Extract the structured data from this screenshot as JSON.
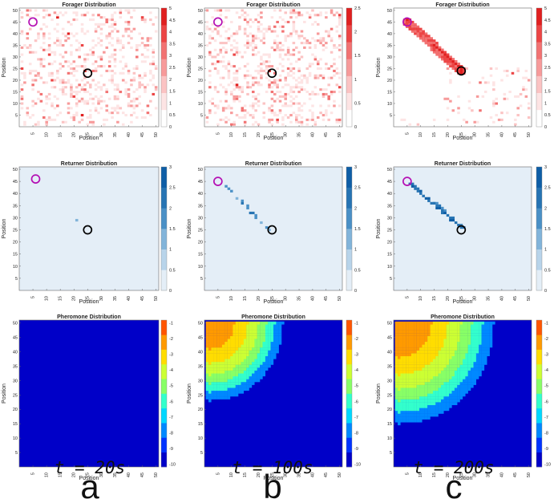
{
  "figure": {
    "column_times": [
      "t = 20s",
      "t = 100s",
      "t = 200s"
    ],
    "column_letters": [
      "a",
      "b",
      "c"
    ]
  },
  "chart_data": [
    {
      "id": "forager-a",
      "type": "heatmap",
      "title": "Forager Distribution",
      "xlabel": "Position",
      "ylabel": "Position",
      "xlim": [
        0,
        51
      ],
      "ylim": [
        0,
        51
      ],
      "xticks": [
        5,
        10,
        15,
        20,
        25,
        30,
        35,
        40,
        45,
        50
      ],
      "yticks": [
        5,
        10,
        15,
        20,
        25,
        30,
        35,
        40,
        45,
        50
      ],
      "colormap": "white-red",
      "clim": [
        0,
        5
      ],
      "colorbar_ticks": [
        0,
        0.5,
        1,
        1.5,
        2,
        2.5,
        3,
        3.5,
        4,
        4.5,
        5
      ],
      "pattern": "scattered foragers over the whole field, densest near the nest",
      "markers": [
        {
          "name": "source",
          "x": 5,
          "y": 45,
          "color": "#b40fb4"
        },
        {
          "name": "nest",
          "x": 25,
          "y": 23,
          "color": "#000000"
        }
      ]
    },
    {
      "id": "forager-b",
      "type": "heatmap",
      "title": "Forager Distribution",
      "xlabel": "Position",
      "ylabel": "Position",
      "xlim": [
        0,
        51
      ],
      "ylim": [
        0,
        51
      ],
      "xticks": [
        5,
        10,
        15,
        20,
        25,
        30,
        35,
        40,
        45,
        50
      ],
      "yticks": [
        5,
        10,
        15,
        20,
        25,
        30,
        35,
        40,
        45,
        50
      ],
      "colormap": "white-red",
      "clim": [
        0,
        2.5
      ],
      "colorbar_ticks": [
        0,
        0.5,
        1,
        1.5,
        2,
        2.5
      ],
      "pattern": "scattered foragers, beginning to align toward the source",
      "markers": [
        {
          "name": "source",
          "x": 5,
          "y": 45,
          "color": "#b40fb4"
        },
        {
          "name": "nest",
          "x": 25,
          "y": 23,
          "color": "#000000"
        }
      ]
    },
    {
      "id": "forager-c",
      "type": "heatmap",
      "title": "Forager Distribution",
      "xlabel": "Position",
      "ylabel": "Position",
      "xlim": [
        0,
        51
      ],
      "ylim": [
        0,
        51
      ],
      "xticks": [
        5,
        10,
        15,
        20,
        25,
        30,
        35,
        40,
        45,
        50
      ],
      "yticks": [
        5,
        10,
        15,
        20,
        25,
        30,
        35,
        40,
        45,
        50
      ],
      "colormap": "white-red",
      "clim": [
        0,
        5
      ],
      "colorbar_ticks": [
        0,
        0.5,
        1,
        1.5,
        2,
        2.5,
        3,
        3.5,
        4,
        4.5,
        5
      ],
      "pattern": "dense diagonal trail from source to nest plus sparse foragers lower right",
      "trail": {
        "from": [
          5,
          45
        ],
        "to": [
          25,
          24
        ]
      },
      "markers": [
        {
          "name": "source",
          "x": 5,
          "y": 45,
          "color": "#b40fb4"
        },
        {
          "name": "nest",
          "x": 25,
          "y": 24,
          "color": "#000000"
        }
      ]
    },
    {
      "id": "returner-a",
      "type": "heatmap",
      "title": "Returner Distribution",
      "xlabel": "Position",
      "ylabel": "Position",
      "xlim": [
        0,
        51
      ],
      "ylim": [
        0,
        51
      ],
      "xticks": [
        5,
        10,
        15,
        20,
        25,
        30,
        35,
        40,
        45,
        50
      ],
      "yticks": [
        5,
        10,
        15,
        20,
        25,
        30,
        35,
        40,
        45,
        50
      ],
      "colormap": "blues",
      "clim": [
        0,
        3
      ],
      "colorbar_ticks": [
        0,
        0.5,
        1,
        1.5,
        2,
        2.5,
        3
      ],
      "cells": [
        {
          "x": 21,
          "y": 29,
          "value": 1
        }
      ],
      "markers": [
        {
          "name": "source",
          "x": 6,
          "y": 46,
          "color": "#b40fb4"
        },
        {
          "name": "nest",
          "x": 25,
          "y": 25,
          "color": "#000000"
        }
      ]
    },
    {
      "id": "returner-b",
      "type": "heatmap",
      "title": "Returner Distribution",
      "xlabel": "Position",
      "ylabel": "Position",
      "xlim": [
        0,
        51
      ],
      "ylim": [
        0,
        51
      ],
      "xticks": [
        5,
        10,
        15,
        20,
        25,
        30,
        35,
        40,
        45,
        50
      ],
      "yticks": [
        5,
        10,
        15,
        20,
        25,
        30,
        35,
        40,
        45,
        50
      ],
      "colormap": "blues",
      "clim": [
        0,
        3
      ],
      "colorbar_ticks": [
        0,
        0.5,
        1,
        1.5,
        2,
        2.5,
        3
      ],
      "trail": {
        "from": [
          7,
          44
        ],
        "to": [
          24,
          25
        ],
        "fill": "sparse"
      },
      "markers": [
        {
          "name": "source",
          "x": 5,
          "y": 45,
          "color": "#b40fb4"
        },
        {
          "name": "nest",
          "x": 25,
          "y": 25,
          "color": "#000000"
        }
      ]
    },
    {
      "id": "returner-c",
      "type": "heatmap",
      "title": "Returner Distribution",
      "xlabel": "Position",
      "ylabel": "Position",
      "xlim": [
        0,
        51
      ],
      "ylim": [
        0,
        51
      ],
      "xticks": [
        5,
        10,
        15,
        20,
        25,
        30,
        35,
        40,
        45,
        50
      ],
      "yticks": [
        5,
        10,
        15,
        20,
        25,
        30,
        35,
        40,
        45,
        50
      ],
      "colormap": "blues",
      "clim": [
        0,
        3
      ],
      "colorbar_ticks": [
        0,
        0.5,
        1,
        1.5,
        2,
        2.5,
        3
      ],
      "trail": {
        "from": [
          6,
          44
        ],
        "to": [
          25,
          26
        ],
        "fill": "dense"
      },
      "markers": [
        {
          "name": "source",
          "x": 5,
          "y": 45,
          "color": "#b40fb4"
        },
        {
          "name": "nest",
          "x": 25,
          "y": 25,
          "color": "#000000"
        }
      ]
    },
    {
      "id": "pheromone-a",
      "type": "heatmap",
      "title": "Pheromone Distribution",
      "xlabel": "Position",
      "ylabel": "Position",
      "xlim": [
        0,
        51
      ],
      "ylim": [
        0,
        51
      ],
      "xticks": [
        5,
        10,
        15,
        20,
        25,
        30,
        35,
        40,
        45,
        50
      ],
      "yticks": [
        5,
        10,
        15,
        20,
        25,
        30,
        35,
        40,
        45,
        50
      ],
      "colormap": "jet-10",
      "clim": [
        -10,
        -1
      ],
      "colorbar_ticks": [
        -1,
        -2,
        -3,
        -4,
        -5,
        -6,
        -7,
        -8,
        -9,
        -10
      ],
      "level_boundaries": [],
      "base_level": -10
    },
    {
      "id": "pheromone-b",
      "type": "heatmap",
      "title": "Pheromone Distribution",
      "xlabel": "Position",
      "ylabel": "Position",
      "xlim": [
        0,
        51
      ],
      "ylim": [
        0,
        51
      ],
      "xticks": [
        5,
        10,
        15,
        20,
        25,
        30,
        35,
        40,
        45,
        50
      ],
      "yticks": [
        5,
        10,
        15,
        20,
        25,
        30,
        35,
        40,
        45,
        50
      ],
      "colormap": "jet-10",
      "clim": [
        -10,
        -1
      ],
      "colorbar_ticks": [
        -1,
        -2,
        -3,
        -4,
        -5,
        -6,
        -7,
        -8,
        -9,
        -10
      ],
      "source": [
        2,
        50
      ],
      "level_boundaries": [
        {
          "level": -2,
          "radius": 9
        },
        {
          "level": -3,
          "radius": 14
        },
        {
          "level": -4,
          "radius": 18
        },
        {
          "level": -5,
          "radius": 21
        },
        {
          "level": -6,
          "radius": 24
        },
        {
          "level": -8,
          "radius": 27
        }
      ],
      "base_level": -10
    },
    {
      "id": "pheromone-c",
      "type": "heatmap",
      "title": "Pheromone Distribution",
      "xlabel": "Position",
      "ylabel": "Position",
      "xlim": [
        0,
        51
      ],
      "ylim": [
        0,
        51
      ],
      "xticks": [
        5,
        10,
        15,
        20,
        25,
        30,
        35,
        40,
        45,
        50
      ],
      "yticks": [
        5,
        10,
        15,
        20,
        25,
        30,
        35,
        40,
        45,
        50
      ],
      "colormap": "jet-10",
      "clim": [
        -10,
        -1
      ],
      "colorbar_ticks": [
        -1,
        -2,
        -3,
        -4,
        -5,
        -6,
        -7,
        -8,
        -9,
        -10
      ],
      "source": [
        2,
        50
      ],
      "level_boundaries": [
        {
          "level": -2,
          "radius": 12
        },
        {
          "level": -3,
          "radius": 18
        },
        {
          "level": -4,
          "radius": 23
        },
        {
          "level": -5,
          "radius": 27
        },
        {
          "level": -6,
          "radius": 31
        },
        {
          "level": -8,
          "radius": 35
        }
      ],
      "base_level": -10
    }
  ]
}
